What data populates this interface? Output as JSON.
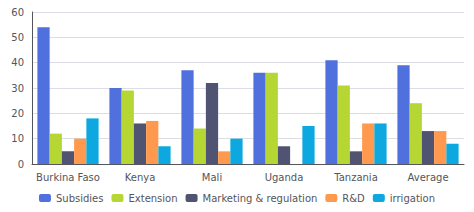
{
  "chart_data": {
    "type": "bar",
    "categories": [
      "Burkina Faso",
      "Kenya",
      "Mali",
      "Uganda",
      "Tanzania",
      "Average"
    ],
    "series": [
      {
        "name": "Subsidies",
        "values": [
          54,
          30,
          37,
          36,
          41,
          39
        ]
      },
      {
        "name": "Extension",
        "values": [
          12,
          29,
          14,
          36,
          31,
          24
        ]
      },
      {
        "name": "Marketing & regulation",
        "values": [
          5,
          16,
          32,
          7,
          5,
          13
        ]
      },
      {
        "name": "R&D",
        "values": [
          10,
          17,
          5,
          0,
          16,
          13
        ]
      },
      {
        "name": "irrigation",
        "values": [
          18,
          7,
          10,
          15,
          16,
          8
        ]
      }
    ],
    "ylim": [
      0,
      60
    ],
    "yticks": [
      0,
      10,
      20,
      30,
      40,
      50,
      60
    ],
    "grid": true,
    "legend": "bottom"
  }
}
